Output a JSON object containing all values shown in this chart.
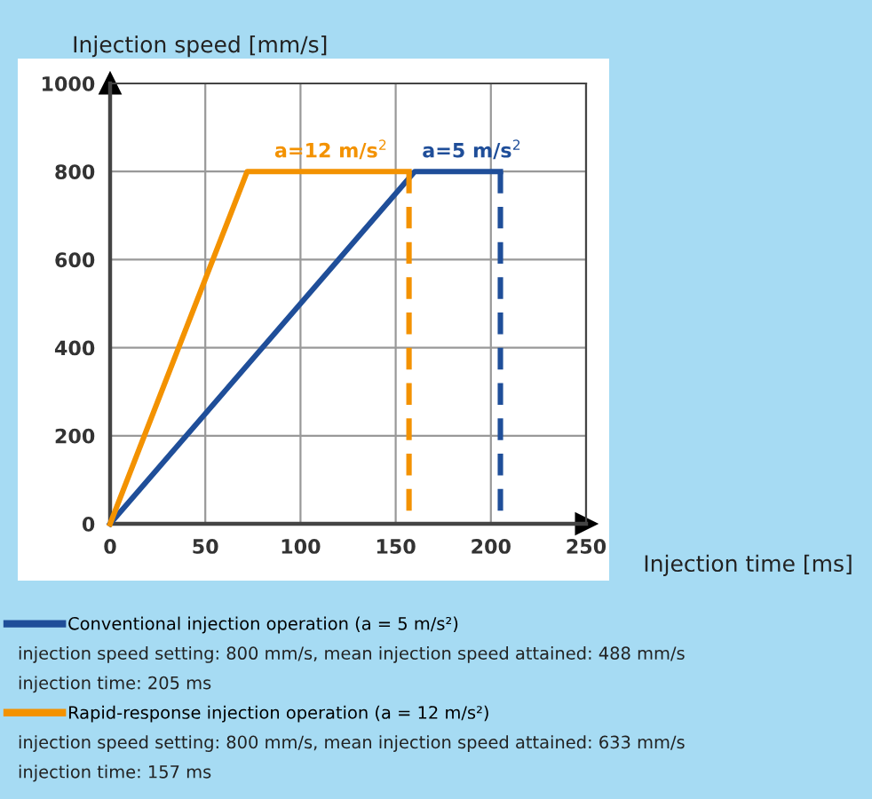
{
  "chart_data": {
    "type": "line",
    "ylabel": "Injection speed [mm/s]",
    "xlabel": "Injection time [ms]",
    "series": [
      {
        "name": "Conventional injection operation (a = 5 m/s²)",
        "color": "#1f4e99",
        "x": [
          0,
          160,
          205
        ],
        "values": [
          0,
          800,
          800
        ]
      },
      {
        "name": "Rapid-response injection operation (a = 12 m/s²)",
        "color": "#f39200",
        "x": [
          0,
          72,
          157
        ],
        "values": [
          0,
          800,
          800
        ]
      },
      {
        "color": "#1f4e99",
        "x": [
          205,
          205
        ],
        "values": [
          800,
          0
        ],
        "line_style": "dashed"
      },
      {
        "color": "#f39200",
        "x": [
          157,
          157
        ],
        "values": [
          800,
          0
        ],
        "line_style": "dashed"
      }
    ],
    "annotations": [
      {
        "text": "a=12 m/s$^{2}$",
        "x": 116,
        "y": 800
      },
      {
        "text": "a=5 m/s$^{2}$",
        "x": 190,
        "y": 800
      },
      "injection speed setting: 800 mm/s, mean injection speed attained: 488 mm/s",
      "injection time: 205 ms",
      "injection speed setting: 800 mm/s, mean injection speed attained: 633 mm/s",
      "injection time: 157 ms"
    ],
    "xlim": [
      0,
      250
    ],
    "ylim": [
      0,
      1000
    ],
    "xticks": [
      0,
      50,
      100,
      150,
      200,
      250
    ],
    "yticks": [
      0,
      200,
      400,
      600,
      800,
      1000
    ],
    "grid": true,
    "legend": "bottom",
    "line_style": "solid"
  }
}
